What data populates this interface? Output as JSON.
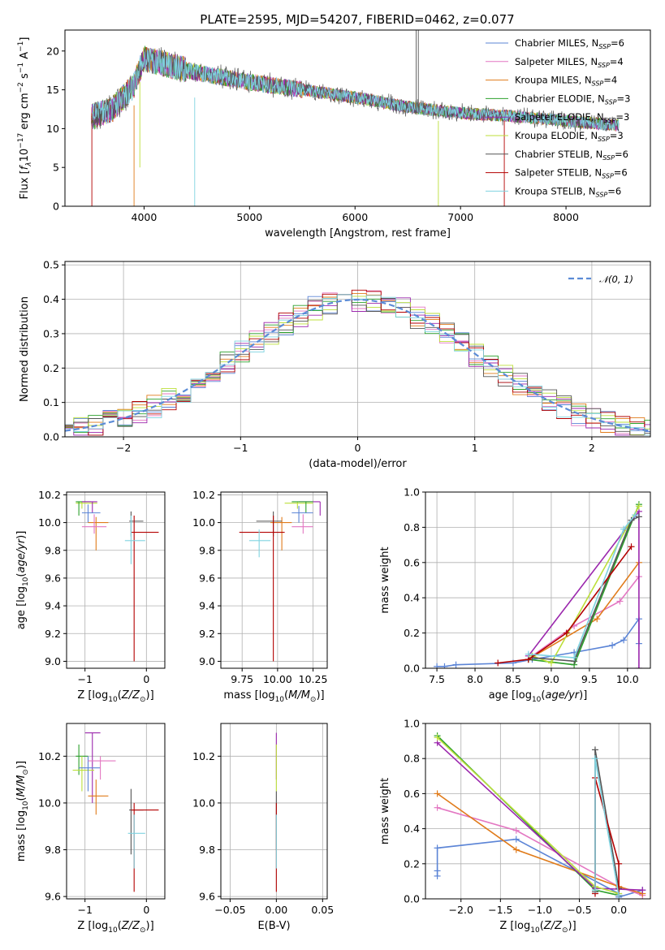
{
  "figure_title": "PLATE=2595, MJD=54207, FIBERID=0462, z=0.077",
  "colors": {
    "chabrier_miles": "#5b84d6",
    "salpeter_miles": "#e377c2",
    "kroupa_miles": "#e07b1a",
    "chabrier_elodie": "#2ca02c",
    "salpeter_elodie": "#9b27ad",
    "kroupa_elodie": "#bcdf3a",
    "chabrier_stelib": "#555555",
    "salpeter_stelib": "#b30000",
    "kroupa_stelib": "#7fd3e0",
    "normal": "#5b8bd6"
  },
  "legend_spectrum": [
    {
      "key": "chabrier_miles",
      "pre": "Chabrier MILES, N",
      "sub": "SSP",
      "post": "=6"
    },
    {
      "key": "salpeter_miles",
      "pre": "Salpeter MILES, N",
      "sub": "SSP",
      "post": "=4"
    },
    {
      "key": "kroupa_miles",
      "pre": "Kroupa MILES, N",
      "sub": "SSP",
      "post": "=4"
    },
    {
      "key": "chabrier_elodie",
      "pre": "Chabrier ELODIE, N",
      "sub": "SSP",
      "post": "=3"
    },
    {
      "key": "salpeter_elodie",
      "pre": "Salpeter ELODIE, N",
      "sub": "SSP",
      "post": "=3"
    },
    {
      "key": "kroupa_elodie",
      "pre": "Kroupa ELODIE, N",
      "sub": "SSP",
      "post": "=3"
    },
    {
      "key": "chabrier_stelib",
      "pre": "Chabrier STELIB, N",
      "sub": "SSP",
      "post": "=6"
    },
    {
      "key": "salpeter_stelib",
      "pre": "Salpeter STELIB, N",
      "sub": "SSP",
      "post": "=6"
    },
    {
      "key": "kroupa_stelib",
      "pre": "Kroupa STELIB, N",
      "sub": "SSP",
      "post": "=6"
    }
  ],
  "legend_hist": "𝒩(0, 1)",
  "chart_data": [
    {
      "id": "spectrum",
      "type": "line",
      "xlabel": "wavelength [Angstrom, rest frame]",
      "ylabel": "Flux [f_λ10^-17 erg cm^-2 s^-1 A^-1]",
      "xlim": [
        3250,
        8800
      ],
      "ylim": [
        0,
        22.7
      ],
      "xticks": [
        4000,
        5000,
        6000,
        7000,
        8000
      ],
      "yticks": [
        0,
        5,
        10,
        15,
        20
      ],
      "continuum": {
        "x": [
          3500,
          3700,
          3900,
          4000,
          4200,
          4500,
          5000,
          5500,
          6000,
          6500,
          7000,
          7500,
          8000,
          8500
        ],
        "y": [
          11.5,
          12.5,
          15.5,
          19.0,
          18.3,
          17.2,
          16.0,
          15.0,
          14.0,
          12.8,
          12.0,
          11.6,
          11.0,
          10.4
        ]
      },
      "x_start": 3500,
      "x_end": 8500,
      "legend_position": "upper-right"
    },
    {
      "id": "residual-hist",
      "type": "histogram",
      "xlabel": "(data-model)/error",
      "ylabel": "Normed distribution",
      "xlim": [
        -2.5,
        2.5
      ],
      "ylim": [
        0,
        0.51
      ],
      "xticks": [
        -2,
        -1,
        0,
        1,
        2
      ],
      "yticks": [
        0.0,
        0.1,
        0.2,
        0.3,
        0.4,
        0.5
      ],
      "bin_width": 0.125,
      "normal_mean": 0,
      "normal_sigma": 1,
      "legend_position": "upper-right"
    },
    {
      "id": "age-vs-Z",
      "type": "errorbar",
      "xlabel": "Z [log10(Z/Z⊙)]",
      "ylabel": "age [log10(age/yr)]",
      "xlim": [
        -1.3,
        0.3
      ],
      "ylim": [
        8.95,
        10.22
      ],
      "xticks": [
        -1,
        0
      ],
      "yticks": [
        9.0,
        9.2,
        9.4,
        9.6,
        9.8,
        10.0,
        10.2
      ],
      "points": [
        {
          "key": "kroupa_elodie",
          "x": -1.05,
          "xl": -1.15,
          "xh": -0.8,
          "y": 10.14,
          "yl": 10.1,
          "yh": 10.15
        },
        {
          "key": "chabrier_elodie",
          "x": -1.1,
          "xl": -1.15,
          "xh": -0.9,
          "y": 10.15,
          "yl": 10.05,
          "yh": 10.15
        },
        {
          "key": "salpeter_elodie",
          "x": -0.88,
          "xl": -1.05,
          "xh": -0.8,
          "y": 10.15,
          "yl": 10.07,
          "yh": 10.15
        },
        {
          "key": "chabrier_miles",
          "x": -0.95,
          "xl": -1.05,
          "xh": -0.75,
          "y": 10.07,
          "yl": 10.0,
          "yh": 10.13
        },
        {
          "key": "kroupa_miles",
          "x": -0.82,
          "xl": -0.95,
          "xh": -0.62,
          "y": 10.0,
          "yl": 9.8,
          "yh": 10.04
        },
        {
          "key": "salpeter_miles",
          "x": -0.85,
          "xl": -1.05,
          "xh": -0.65,
          "y": 9.97,
          "yl": 9.92,
          "yh": 10.06
        },
        {
          "key": "chabrier_stelib",
          "x": -0.25,
          "xl": -0.28,
          "xh": -0.05,
          "y": 10.01,
          "yl": 9.9,
          "yh": 10.08
        },
        {
          "key": "salpeter_stelib",
          "x": -0.2,
          "xl": -0.25,
          "xh": 0.2,
          "y": 9.93,
          "yl": 9.0,
          "yh": 10.05
        },
        {
          "key": "kroupa_stelib",
          "x": -0.25,
          "xl": -0.35,
          "xh": -0.02,
          "y": 9.87,
          "yl": 9.7,
          "yh": 10.05
        }
      ]
    },
    {
      "id": "age-vs-mass",
      "type": "errorbar",
      "xlabel": "mass [log10(M/M⊙)]",
      "ylabel": "",
      "xlim": [
        9.6,
        10.35
      ],
      "ylim": [
        8.95,
        10.22
      ],
      "xticks": [
        9.75,
        10.0,
        10.25
      ],
      "yticks": [
        9.0,
        9.2,
        9.4,
        9.6,
        9.8,
        10.0,
        10.2
      ],
      "points": [
        {
          "key": "salpeter_elodie",
          "x": 10.3,
          "xl": 10.15,
          "xh": 10.3,
          "y": 10.15,
          "yl": 10.05,
          "yh": 10.15
        },
        {
          "key": "kroupa_elodie",
          "x": 10.14,
          "xl": 10.05,
          "xh": 10.25,
          "y": 10.14,
          "yl": 10.1,
          "yh": 10.15
        },
        {
          "key": "chabrier_elodie",
          "x": 10.2,
          "xl": 10.1,
          "xh": 10.25,
          "y": 10.15,
          "yl": 10.07,
          "yh": 10.15
        },
        {
          "key": "chabrier_miles",
          "x": 10.15,
          "xl": 10.1,
          "xh": 10.25,
          "y": 10.07,
          "yl": 10.0,
          "yh": 10.12
        },
        {
          "key": "kroupa_miles",
          "x": 10.03,
          "xl": 9.95,
          "xh": 10.1,
          "y": 10.0,
          "yl": 9.8,
          "yh": 10.04
        },
        {
          "key": "salpeter_miles",
          "x": 10.18,
          "xl": 10.1,
          "xh": 10.25,
          "y": 9.97,
          "yl": 9.92,
          "yh": 10.06
        },
        {
          "key": "chabrier_stelib",
          "x": 9.97,
          "xl": 9.85,
          "xh": 10.03,
          "y": 10.01,
          "yl": 9.9,
          "yh": 10.08
        },
        {
          "key": "salpeter_stelib",
          "x": 9.97,
          "xl": 9.73,
          "xh": 10.05,
          "y": 9.93,
          "yl": 9.0,
          "yh": 10.05
        },
        {
          "key": "kroupa_stelib",
          "x": 9.87,
          "xl": 9.8,
          "xh": 9.95,
          "y": 9.87,
          "yl": 9.75,
          "yh": 9.95
        }
      ]
    },
    {
      "id": "massweight-vs-age",
      "type": "line",
      "xlabel": "age [log10(age/yr)]",
      "ylabel": "mass weight",
      "xlim": [
        7.35,
        10.3
      ],
      "ylim": [
        0,
        1.0
      ],
      "xticks": [
        7.5,
        8.0,
        8.5,
        9.0,
        9.5,
        10.0
      ],
      "yticks": [
        0.0,
        0.2,
        0.4,
        0.6,
        0.8,
        1.0
      ],
      "series": [
        {
          "key": "chabrier_miles",
          "x": [
            7.5,
            7.6,
            7.75,
            8.5,
            8.75,
            9.3,
            9.8,
            9.95,
            10.15,
            10.15
          ],
          "y": [
            0.01,
            0.01,
            0.02,
            0.03,
            0.05,
            0.09,
            0.13,
            0.16,
            0.28,
            0.14
          ]
        },
        {
          "key": "salpeter_miles",
          "x": [
            8.75,
            9.3,
            9.9,
            10.15
          ],
          "y": [
            0.07,
            0.24,
            0.38,
            0.52
          ]
        },
        {
          "key": "kroupa_miles",
          "x": [
            8.7,
            9.6,
            10.15
          ],
          "y": [
            0.05,
            0.28,
            0.6
          ]
        },
        {
          "key": "chabrier_elodie",
          "x": [
            8.7,
            9.3,
            10.15
          ],
          "y": [
            0.05,
            0.02,
            0.93
          ]
        },
        {
          "key": "salpeter_elodie",
          "x": [
            8.7,
            10.15,
            10.15
          ],
          "y": [
            0.07,
            0.89,
            0.0
          ]
        },
        {
          "key": "kroupa_elodie",
          "x": [
            8.75,
            9.0,
            10.15
          ],
          "y": [
            0.07,
            0.03,
            0.92
          ]
        },
        {
          "key": "chabrier_stelib",
          "x": [
            8.75,
            9.3,
            10.05,
            10.15
          ],
          "y": [
            0.06,
            0.04,
            0.84,
            0.86
          ]
        },
        {
          "key": "salpeter_stelib",
          "x": [
            8.3,
            8.7,
            9.2,
            10.05
          ],
          "y": [
            0.03,
            0.05,
            0.2,
            0.69
          ]
        },
        {
          "key": "kroupa_stelib",
          "x": [
            8.7,
            9.3,
            9.95,
            10.1
          ],
          "y": [
            0.08,
            0.06,
            0.79,
            0.87
          ]
        }
      ]
    },
    {
      "id": "mass-vs-Z",
      "type": "errorbar",
      "xlabel": "Z [log10(Z/Z⊙)]",
      "ylabel": "mass [log10(M/M⊙)]",
      "xlim": [
        -1.3,
        0.3
      ],
      "ylim": [
        9.59,
        10.34
      ],
      "xticks": [
        -1,
        0
      ],
      "yticks": [
        9.6,
        9.8,
        10.0,
        10.2
      ],
      "points": [
        {
          "key": "salpeter_elodie",
          "x": -0.88,
          "xl": -1.0,
          "xh": -0.75,
          "y": 10.3,
          "yl": 10.0,
          "yh": 10.3
        },
        {
          "key": "chabrier_elodie",
          "x": -1.1,
          "xl": -1.15,
          "xh": -0.95,
          "y": 10.2,
          "yl": 10.12,
          "yh": 10.25
        },
        {
          "key": "kroupa_elodie",
          "x": -1.05,
          "xl": -1.2,
          "xh": -0.85,
          "y": 10.14,
          "yl": 10.05,
          "yh": 10.2
        },
        {
          "key": "chabrier_miles",
          "x": -0.95,
          "xl": -1.1,
          "xh": -0.75,
          "y": 10.15,
          "yl": 10.05,
          "yh": 10.2
        },
        {
          "key": "salpeter_miles",
          "x": -0.75,
          "xl": -0.95,
          "xh": -0.5,
          "y": 10.18,
          "yl": 10.1,
          "yh": 10.2
        },
        {
          "key": "kroupa_miles",
          "x": -0.82,
          "xl": -0.95,
          "xh": -0.62,
          "y": 10.03,
          "yl": 9.95,
          "yh": 10.1
        },
        {
          "key": "chabrier_stelib",
          "x": -0.25,
          "xl": -0.28,
          "xh": -0.05,
          "y": 9.97,
          "yl": 9.78,
          "yh": 10.06
        },
        {
          "key": "salpeter_stelib",
          "x": -0.2,
          "xl": -0.25,
          "xh": 0.2,
          "y": 9.97,
          "yl": 9.62,
          "yh": 10.0
        },
        {
          "key": "kroupa_stelib",
          "x": -0.2,
          "xl": -0.3,
          "xh": -0.02,
          "y": 9.87,
          "yl": 9.72,
          "yh": 9.95
        }
      ]
    },
    {
      "id": "mass-vs-ebv",
      "type": "errorbar",
      "xlabel": "E(B-V)",
      "ylabel": "",
      "xlim": [
        -0.06,
        0.055
      ],
      "ylim": [
        9.59,
        10.34
      ],
      "xticks": [
        -0.05,
        0.0,
        0.05
      ],
      "xtick_labels": [
        "−0.05",
        "0.00",
        "0.05"
      ],
      "yticks": [
        9.6,
        9.8,
        10.0,
        10.2
      ],
      "points": [
        {
          "key": "salpeter_elodie",
          "x": 0.0,
          "xl": 0.0,
          "xh": 0.0,
          "y": 10.2,
          "yl": 10.1,
          "yh": 10.3
        },
        {
          "key": "kroupa_elodie",
          "x": 0.0,
          "xl": 0.0,
          "xh": 0.0,
          "y": 10.15,
          "yl": 10.05,
          "yh": 10.25
        },
        {
          "key": "chabrier_stelib",
          "x": 0.0,
          "xl": 0.0,
          "xh": 0.0,
          "y": 9.97,
          "yl": 9.8,
          "yh": 10.05
        },
        {
          "key": "salpeter_stelib",
          "x": 0.0,
          "xl": 0.0,
          "xh": 0.0,
          "y": 9.8,
          "yl": 9.62,
          "yh": 10.0
        },
        {
          "key": "kroupa_stelib",
          "x": 0.0,
          "xl": 0.0,
          "xh": 0.0,
          "y": 9.87,
          "yl": 9.72,
          "yh": 9.95
        }
      ]
    },
    {
      "id": "massweight-vs-Z",
      "type": "line",
      "xlabel": "Z [log10(Z/Z⊙)]",
      "ylabel": "mass weight",
      "xlim": [
        -2.45,
        0.4
      ],
      "ylim": [
        0,
        1.0
      ],
      "xticks": [
        -2.0,
        -1.5,
        -1.0,
        -0.5,
        0.0
      ],
      "xtick_labels": [
        "−2.0",
        "−1.5",
        "−1.0",
        "−0.5",
        "0.0"
      ],
      "yticks": [
        0.0,
        0.2,
        0.4,
        0.6,
        0.8,
        1.0
      ],
      "series": [
        {
          "key": "chabrier_miles",
          "x": [
            -2.3,
            -2.3,
            -2.3,
            -1.3,
            0.0,
            0.0,
            0.3
          ],
          "y": [
            0.13,
            0.16,
            0.29,
            0.34,
            0.03,
            0.01,
            0.05
          ]
        },
        {
          "key": "salpeter_miles",
          "x": [
            -2.3,
            -1.3,
            0.0,
            0.3
          ],
          "y": [
            0.52,
            0.39,
            0.07,
            0.02
          ]
        },
        {
          "key": "kroupa_miles",
          "x": [
            -2.3,
            -1.3,
            0.0,
            0.3
          ],
          "y": [
            0.6,
            0.28,
            0.07,
            0.03
          ]
        },
        {
          "key": "chabrier_elodie",
          "x": [
            -2.3,
            -0.3,
            0.0
          ],
          "y": [
            0.93,
            0.05,
            0.02
          ]
        },
        {
          "key": "salpeter_elodie",
          "x": [
            -2.3,
            -0.3,
            0.3
          ],
          "y": [
            0.89,
            0.06,
            0.05
          ]
        },
        {
          "key": "kroupa_elodie",
          "x": [
            -2.3,
            -0.3,
            0.0
          ],
          "y": [
            0.92,
            0.07,
            0.03
          ]
        },
        {
          "key": "chabrier_stelib",
          "x": [
            -0.3,
            -0.3,
            0.0,
            0.0
          ],
          "y": [
            0.04,
            0.85,
            0.06,
            0.02
          ]
        },
        {
          "key": "salpeter_stelib",
          "x": [
            -0.3,
            -0.3,
            0.0,
            0.0
          ],
          "y": [
            0.03,
            0.69,
            0.2,
            0.02
          ]
        },
        {
          "key": "kroupa_stelib",
          "x": [
            -0.3,
            -0.3,
            0.0
          ],
          "y": [
            0.05,
            0.8,
            0.02
          ]
        }
      ]
    }
  ]
}
